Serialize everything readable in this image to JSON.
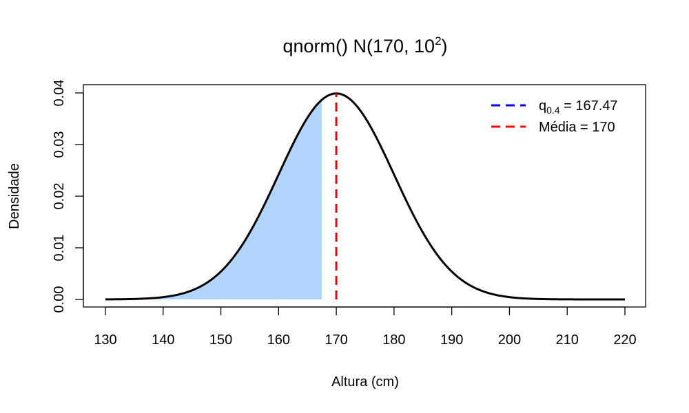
{
  "chart_data": {
    "type": "area",
    "title": {
      "main": "qnorm() N",
      "params": "170, 10",
      "superscript": "2"
    },
    "xlabel": "Altura (cm)",
    "ylabel": "Densidade",
    "xlim": [
      130,
      220
    ],
    "ylim": [
      0,
      0.04
    ],
    "x_ticks": [
      130,
      140,
      150,
      160,
      170,
      180,
      190,
      200,
      210,
      220
    ],
    "y_ticks": [
      0,
      0.01,
      0.02,
      0.03,
      0.04
    ],
    "y_tick_labels": [
      "0.00",
      "0.01",
      "0.02",
      "0.03",
      "0.04"
    ],
    "grid": false,
    "distribution": {
      "name": "normal",
      "mean": 170,
      "sd": 10
    },
    "shaded_region": {
      "from": 130,
      "to": 167.47,
      "color": "#b0d4fb"
    },
    "curve_color": "#000000",
    "vlines": [
      {
        "x": 167.47,
        "color": "#0000ff",
        "style": "dashed",
        "label_base": "q",
        "label_sub": "0.4",
        "label_rest": " = 167.47",
        "drawn": false
      },
      {
        "x": 170,
        "color": "#ff0000",
        "style": "dashed",
        "label_text": "Média = 170",
        "drawn": true
      }
    ],
    "legend_position": "top-right"
  }
}
